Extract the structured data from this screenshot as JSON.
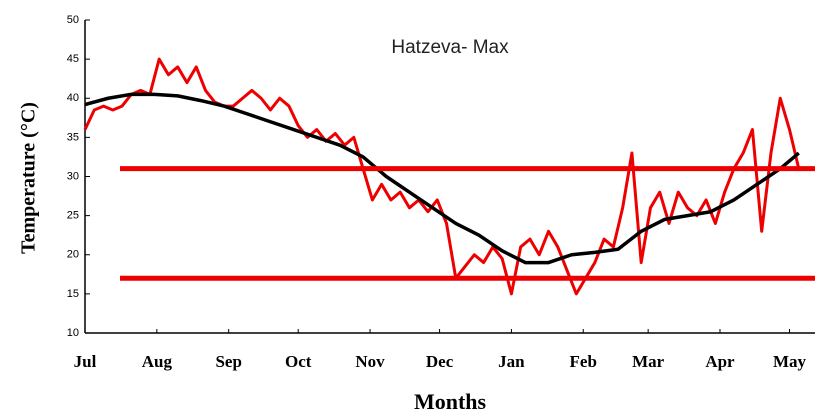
{
  "chart_data": {
    "type": "line",
    "title": "Hatzeva- Max",
    "x_label": "Months",
    "y_label": "Temperature (°C)",
    "xlim": [
      0,
      315
    ],
    "xticks": [
      {
        "value": 0,
        "label": "Jul"
      },
      {
        "value": 31,
        "label": "Aug"
      },
      {
        "value": 62,
        "label": "Sep"
      },
      {
        "value": 92,
        "label": "Oct"
      },
      {
        "value": 123,
        "label": "Nov"
      },
      {
        "value": 153,
        "label": "Dec"
      },
      {
        "value": 184,
        "label": "Jan"
      },
      {
        "value": 215,
        "label": "Feb"
      },
      {
        "value": 243,
        "label": "Mar"
      },
      {
        "value": 274,
        "label": "Apr"
      },
      {
        "value": 304,
        "label": "May"
      }
    ],
    "ylim": [
      10,
      50
    ],
    "yticks": [
      10,
      15,
      20,
      25,
      30,
      35,
      40,
      45,
      50
    ],
    "grid": false,
    "reference_lines": {
      "color": "#ee0000",
      "values": [
        31,
        17
      ]
    },
    "series": [
      {
        "color": "#ee0000",
        "x": [
          0,
          4,
          8,
          12,
          16,
          20,
          24,
          28,
          32,
          36,
          40,
          44,
          48,
          52,
          56,
          60,
          64,
          68,
          72,
          76,
          80,
          84,
          88,
          92,
          96,
          100,
          104,
          108,
          112,
          116,
          120,
          124,
          128,
          132,
          136,
          140,
          144,
          148,
          152,
          156,
          160,
          164,
          168,
          172,
          176,
          180,
          184,
          188,
          192,
          196,
          200,
          204,
          208,
          212,
          216,
          220,
          224,
          228,
          232,
          236,
          240,
          244,
          248,
          252,
          256,
          260,
          264,
          268,
          272,
          276,
          280,
          284,
          288,
          292,
          296,
          300,
          304,
          308
        ],
        "values": [
          36,
          38.5,
          39,
          38.5,
          39,
          40.5,
          41,
          40.5,
          45,
          43,
          44,
          42,
          44,
          41,
          39.5,
          39,
          39,
          40,
          41,
          40,
          38.5,
          40,
          39,
          36.5,
          35,
          36,
          34.5,
          35.5,
          34,
          35,
          31,
          27,
          29,
          27,
          28,
          26,
          27,
          25.5,
          27,
          24,
          17,
          18.5,
          20,
          19,
          21,
          19.5,
          15,
          21,
          22,
          20,
          23,
          21,
          18,
          15,
          17,
          19,
          22,
          21,
          26,
          33,
          19,
          26,
          28,
          24,
          28,
          26,
          25,
          27,
          24,
          28,
          31,
          33,
          36,
          23,
          33,
          40,
          36,
          31
        ]
      },
      {
        "color": "#000000",
        "x": [
          0,
          10,
          20,
          30,
          40,
          50,
          60,
          70,
          80,
          90,
          100,
          110,
          120,
          130,
          140,
          150,
          160,
          170,
          180,
          190,
          200,
          210,
          220,
          230,
          240,
          250,
          260,
          270,
          280,
          290,
          300,
          308
        ],
        "values": [
          39.2,
          40,
          40.5,
          40.5,
          40.3,
          39.7,
          39,
          38,
          37,
          36,
          35,
          34,
          32.5,
          30,
          28,
          26,
          24,
          22.5,
          20.5,
          19,
          19,
          20,
          20.3,
          20.7,
          23,
          24.5,
          25,
          25.5,
          27,
          29,
          31,
          33
        ]
      }
    ]
  }
}
